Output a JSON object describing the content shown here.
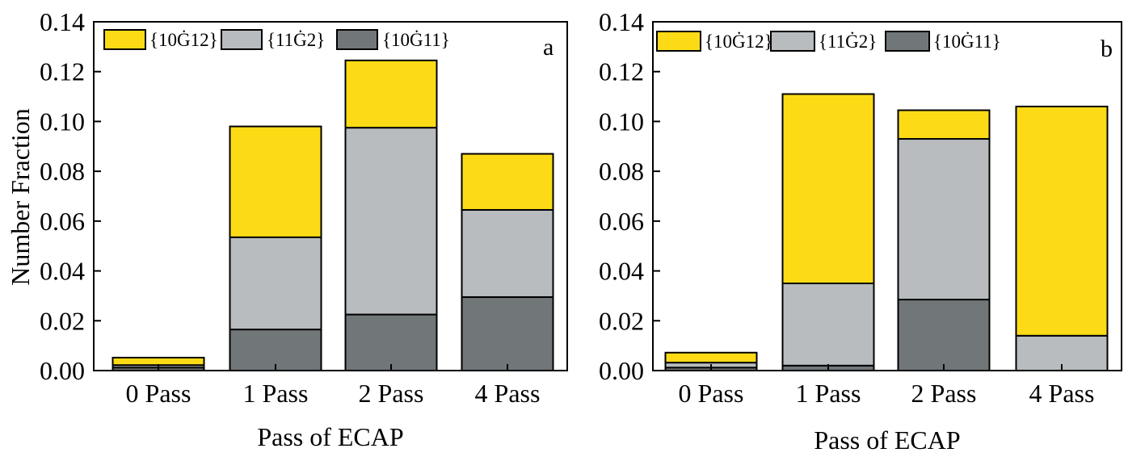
{
  "chart_data": [
    {
      "type": "bar",
      "stacked": true,
      "panel_label": "a",
      "categories": [
        "0 Pass",
        "1 Pass",
        "2 Pass",
        "4 Pass"
      ],
      "series": [
        {
          "name": "{10Ġ12}",
          "color": "#FCDB16",
          "values": [
            0.003,
            0.0445,
            0.027,
            0.0225
          ]
        },
        {
          "name": "{11Ġ2}",
          "color": "#B8BCBE",
          "values": [
            0.001,
            0.037,
            0.075,
            0.035
          ]
        },
        {
          "name": "{10Ġ11}",
          "color": "#717679",
          "values": [
            0.0012,
            0.0165,
            0.0225,
            0.0295
          ]
        }
      ],
      "xlabel": "Pass of ECAP",
      "ylabel": "Number Fraction",
      "ylim": [
        0,
        0.14
      ],
      "yticks": [
        "0.00",
        "0.02",
        "0.04",
        "0.06",
        "0.08",
        "0.10",
        "0.12",
        "0.14"
      ],
      "legend_position": "top-left",
      "grid": false
    },
    {
      "type": "bar",
      "stacked": true,
      "panel_label": "b",
      "categories": [
        "0 Pass",
        "1 Pass",
        "2 Pass",
        "4 Pass"
      ],
      "series": [
        {
          "name": "{10Ġ12}",
          "color": "#FCDB16",
          "values": [
            0.004,
            0.076,
            0.0115,
            0.092
          ]
        },
        {
          "name": "{11Ġ2}",
          "color": "#B8BCBE",
          "values": [
            0.002,
            0.033,
            0.0645,
            0.014
          ]
        },
        {
          "name": "{10Ġ11}",
          "color": "#717679",
          "values": [
            0.0012,
            0.002,
            0.0285,
            0
          ]
        }
      ],
      "xlabel": "Pass of ECAP",
      "ylabel": "",
      "ylim": [
        0,
        0.14
      ],
      "yticks": [
        "0.00",
        "0.02",
        "0.04",
        "0.06",
        "0.08",
        "0.10",
        "0.12",
        "0.14"
      ],
      "legend_position": "top-left",
      "grid": false
    }
  ]
}
